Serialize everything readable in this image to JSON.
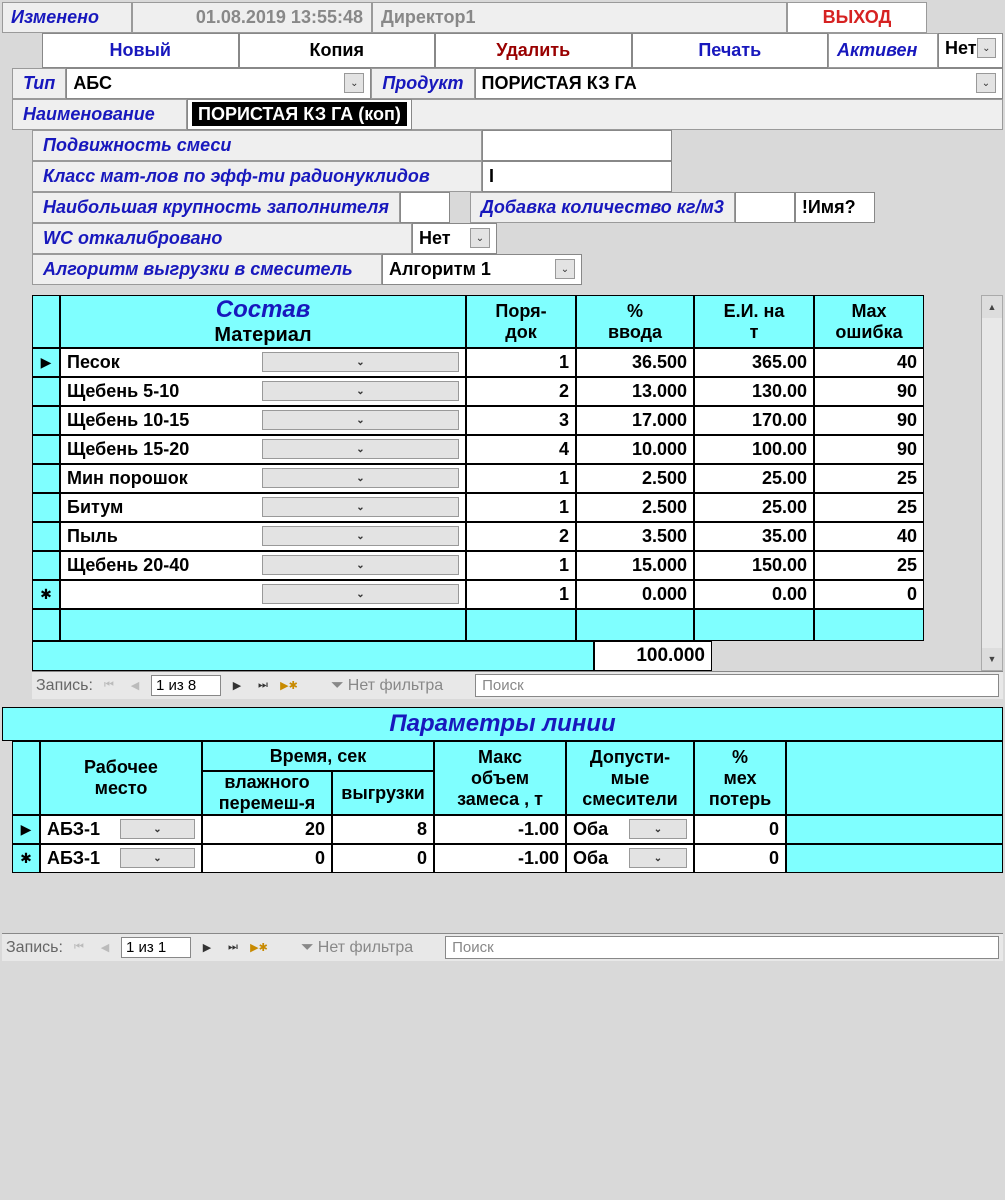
{
  "header": {
    "changed_label": "Изменено",
    "timestamp": "01.08.2019 13:55:48",
    "user": "Директор1",
    "exit_label": "ВЫХОД"
  },
  "toolbar": {
    "new_label": "Новый",
    "copy_label": "Копия",
    "delete_label": "Удалить",
    "print_label": "Печать",
    "active_label": "Активен",
    "active_value": "Нет"
  },
  "form": {
    "type_label": "Тип",
    "type_value": "АБС",
    "product_label": "Продукт",
    "product_value": "ПОРИСТАЯ КЗ ГА",
    "name_label": "Наименование",
    "name_value": "ПОРИСТАЯ КЗ ГА (коп)",
    "mobility_label": "Подвижность смеси",
    "mobility_value": "",
    "class_label": "Класс мат-лов по эфф-ти радионуклидов",
    "class_value": "I",
    "coarse_label": "Наибольшая крупность заполнителя",
    "coarse_value": "",
    "additive_label": "Добавка количество кг/м3",
    "additive_value": "",
    "name_q": "!Имя?",
    "wc_label": "WC откалибровано",
    "wc_value": "Нет",
    "algo_label": "Алгоритм выгрузки в смеситель",
    "algo_value": "Алгоритм 1"
  },
  "composition": {
    "title": "Состав",
    "material_label": "Материал",
    "order_label": "Поря-\nдок",
    "percent_label": "%\nввода",
    "ei_label": "Е.И. на\nт",
    "err_label": "Max\nошибка",
    "total": "100.000",
    "rows": [
      {
        "sel": "▶",
        "mat": "Песок",
        "ord": "1",
        "pct": "36.500",
        "ei": "365.00",
        "err": "40"
      },
      {
        "sel": "",
        "mat": "Щебень 5-10",
        "ord": "2",
        "pct": "13.000",
        "ei": "130.00",
        "err": "90"
      },
      {
        "sel": "",
        "mat": "Щебень 10-15",
        "ord": "3",
        "pct": "17.000",
        "ei": "170.00",
        "err": "90"
      },
      {
        "sel": "",
        "mat": "Щебень 15-20",
        "ord": "4",
        "pct": "10.000",
        "ei": "100.00",
        "err": "90"
      },
      {
        "sel": "",
        "mat": "Мин порошок",
        "ord": "1",
        "pct": "2.500",
        "ei": "25.00",
        "err": "25"
      },
      {
        "sel": "",
        "mat": "Битум",
        "ord": "1",
        "pct": "2.500",
        "ei": "25.00",
        "err": "25"
      },
      {
        "sel": "",
        "mat": "Пыль",
        "ord": "2",
        "pct": "3.500",
        "ei": "35.00",
        "err": "40"
      },
      {
        "sel": "",
        "mat": "Щебень 20-40",
        "ord": "1",
        "pct": "15.000",
        "ei": "150.00",
        "err": "25"
      },
      {
        "sel": "✱",
        "mat": "",
        "ord": "1",
        "pct": "0.000",
        "ei": "0.00",
        "err": "0"
      }
    ],
    "nav": {
      "record_label": "Запись:",
      "record_info": "1 из 8",
      "no_filter": "Нет фильтра",
      "search_placeholder": "Поиск"
    }
  },
  "params": {
    "title": "Параметры линии",
    "workplace_label": "Рабочее\nместо",
    "time_label": "Время, сек",
    "wet_label": "влажного\nперемеш-я",
    "unload_label": "выгрузки",
    "maxvol_label": "Макс\nобъем\nзамеса , т",
    "mixers_label": "Допусти-\nмые\nсмесители",
    "mech_label": "%\nмех\nпотерь",
    "rows": [
      {
        "sel": "▶",
        "wp": "АБЗ-1",
        "wet": "20",
        "unl": "8",
        "mv": "-1.00",
        "mix": "Оба",
        "mech": "0"
      },
      {
        "sel": "✱",
        "wp": "АБЗ-1",
        "wet": "0",
        "unl": "0",
        "mv": "-1.00",
        "mix": "Оба",
        "mech": "0"
      }
    ],
    "nav": {
      "record_label": "Запись:",
      "record_info": "1 из 1",
      "no_filter": "Нет фильтра",
      "search_placeholder": "Поиск"
    }
  },
  "colors": {
    "cyan": "#7fffff",
    "blue_text": "#1818bd",
    "red_text": "#d62222"
  },
  "col_widths": {
    "composition": {
      "sel": 28,
      "mat": 406,
      "ord": 110,
      "pct": 118,
      "ei": 120,
      "err": 110
    },
    "params": {
      "sel": 28,
      "wp": 162,
      "wet": 130,
      "unl": 102,
      "mv": 132,
      "mix": 128,
      "mech": 92
    }
  }
}
